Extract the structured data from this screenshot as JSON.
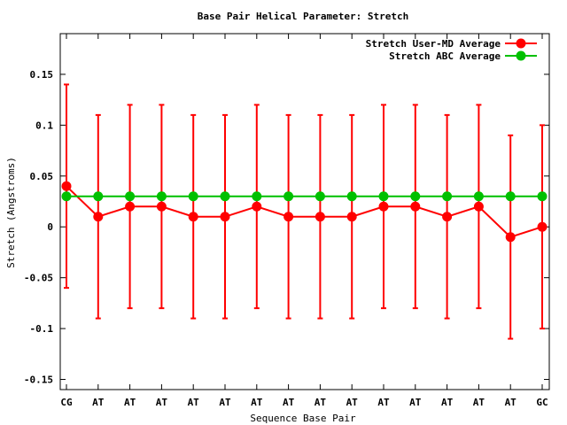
{
  "chart_data": {
    "type": "line",
    "title": "Base Pair Helical Parameter: Stretch",
    "xlabel": "Sequence Base Pair",
    "ylabel": "Stretch (Angstroms)",
    "categories": [
      "CG",
      "AT",
      "AT",
      "AT",
      "AT",
      "AT",
      "AT",
      "AT",
      "AT",
      "AT",
      "AT",
      "AT",
      "AT",
      "AT",
      "AT",
      "GC"
    ],
    "ylim": [
      -0.16,
      0.19
    ],
    "yticks": [
      0.15,
      0.1,
      0.05,
      0,
      -0.05,
      -0.1,
      -0.15
    ],
    "ytick_labels": [
      "0.15",
      "0.1",
      "0.05",
      "0",
      "-0.05",
      "-0.1",
      "-0.15"
    ],
    "grid": false,
    "legend_position": "top-right",
    "series": [
      {
        "name": "Stretch User-MD Average",
        "color": "#ff0000",
        "values": [
          0.04,
          0.01,
          0.02,
          0.02,
          0.01,
          0.01,
          0.02,
          0.01,
          0.01,
          0.01,
          0.02,
          0.02,
          0.01,
          0.02,
          -0.01,
          0.0
        ],
        "error_low": [
          -0.06,
          -0.09,
          -0.08,
          -0.08,
          -0.09,
          -0.09,
          -0.08,
          -0.09,
          -0.09,
          -0.09,
          -0.08,
          -0.08,
          -0.09,
          -0.08,
          -0.11,
          -0.1
        ],
        "error_high": [
          0.14,
          0.11,
          0.12,
          0.12,
          0.11,
          0.11,
          0.12,
          0.11,
          0.11,
          0.11,
          0.12,
          0.12,
          0.11,
          0.12,
          0.09,
          0.1
        ]
      },
      {
        "name": "Stretch ABC Average",
        "color": "#00c000",
        "values": [
          0.03,
          0.03,
          0.03,
          0.03,
          0.03,
          0.03,
          0.03,
          0.03,
          0.03,
          0.03,
          0.03,
          0.03,
          0.03,
          0.03,
          0.03,
          0.03
        ]
      }
    ]
  }
}
